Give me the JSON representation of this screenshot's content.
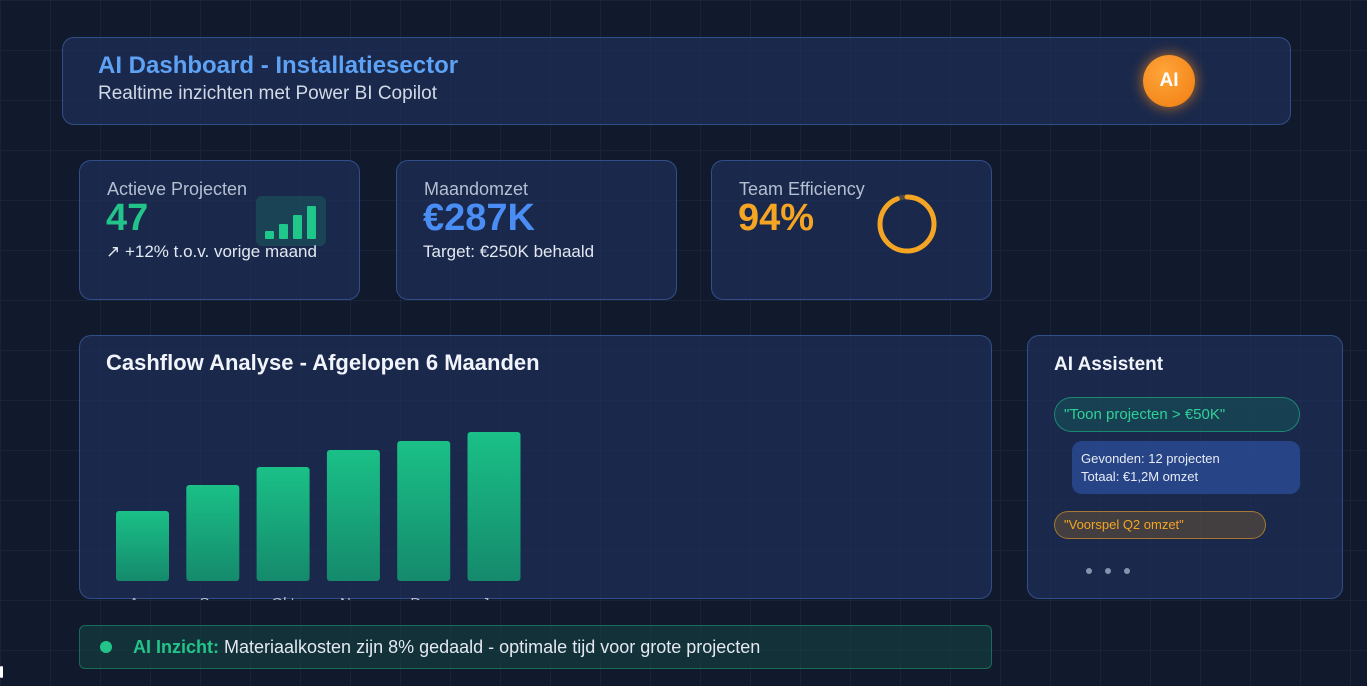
{
  "header": {
    "title": "AI Dashboard - Installatiesector",
    "subtitle": "Realtime inzichten met Power BI Copilot",
    "badge": "AI"
  },
  "kpis": {
    "projects": {
      "label": "Actieve Projecten",
      "value": "47",
      "note": "↗ +12% t.o.v. vorige maand",
      "icon": "bar-chart-icon"
    },
    "revenue": {
      "label": "Maandomzet",
      "value": "€287K",
      "note": "Target: €250K behaald"
    },
    "efficiency": {
      "label": "Team Efficiency",
      "value": "94%",
      "progress": 0.94
    }
  },
  "colors": {
    "green": "#22c48a",
    "blue": "#4a8ef5",
    "orange": "#f5a524",
    "title_blue": "#5ea2f5"
  },
  "chart_data": {
    "type": "bar",
    "title": "Cashflow Analyse - Afgelopen 6 Maanden",
    "categories": [
      "Aug",
      "Sep",
      "Okt",
      "Nov",
      "Dec",
      "Jan"
    ],
    "values": [
      70,
      96,
      114,
      131,
      140,
      149
    ],
    "ylim": [
      0,
      160
    ],
    "grid": false,
    "xlabel": "",
    "ylabel": ""
  },
  "assistant": {
    "title": "AI Assistent",
    "query1": "\"Toon projecten > €50K\"",
    "answer_line1": "Gevonden: 12 projecten",
    "answer_line2": "Totaal: €1,2M omzet",
    "query2": "\"Voorspel Q2 omzet\""
  },
  "insight": {
    "label": "AI Inzicht:",
    "text": " Materiaalkosten zijn 8% gedaald - optimale tijd voor grote projecten"
  }
}
